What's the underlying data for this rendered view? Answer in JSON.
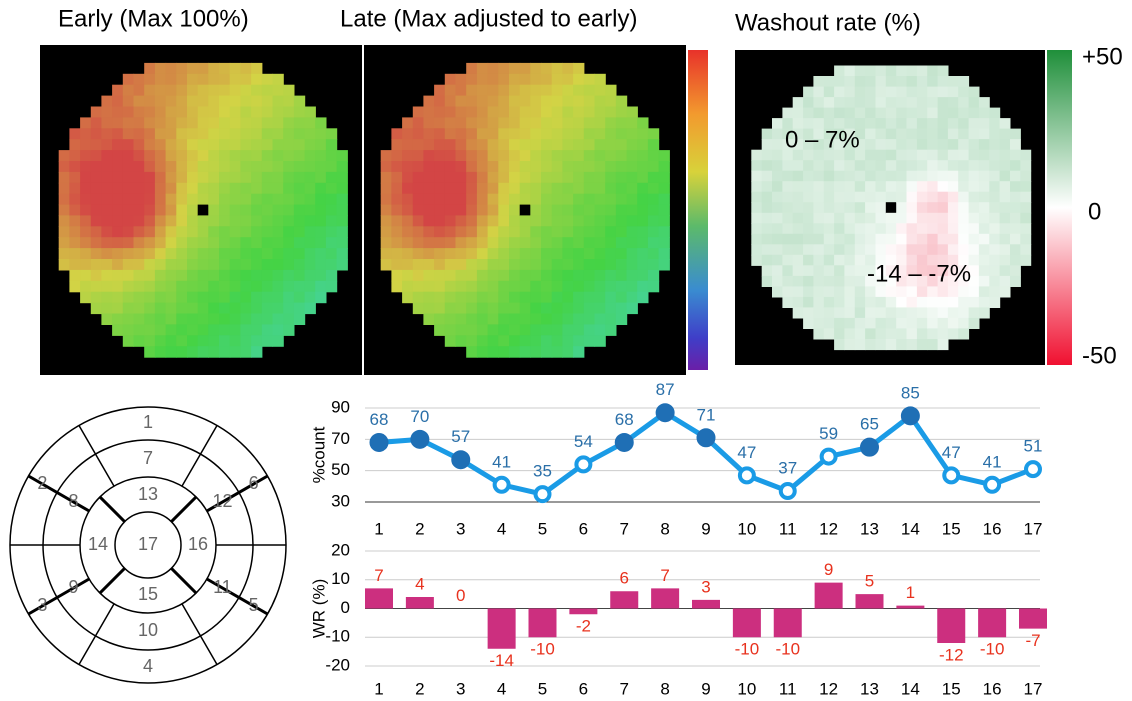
{
  "figure": {
    "maps": [
      {
        "title": "Early (Max 100%)"
      },
      {
        "title": "Late (Max adjusted to early)"
      },
      {
        "title": "Washout rate (%)",
        "scale_labels": [
          "+50",
          "0",
          "-50"
        ],
        "annotations": [
          "0 – 7%",
          "-14 – -7%"
        ]
      }
    ],
    "bullseye": {
      "segments": [
        "1",
        "2",
        "3",
        "4",
        "5",
        "6",
        "7",
        "8",
        "9",
        "10",
        "11",
        "12",
        "13",
        "14",
        "15",
        "16",
        "17"
      ]
    }
  },
  "chart_data": [
    {
      "type": "line",
      "y_label": "%count",
      "categories": [
        "1",
        "2",
        "3",
        "4",
        "5",
        "6",
        "7",
        "8",
        "9",
        "10",
        "11",
        "12",
        "13",
        "14",
        "15",
        "16",
        "17"
      ],
      "values": [
        68,
        70,
        57,
        41,
        35,
        54,
        68,
        87,
        71,
        47,
        37,
        59,
        65,
        85,
        47,
        41,
        51
      ],
      "marker_filled": [
        true,
        true,
        true,
        false,
        false,
        false,
        true,
        true,
        true,
        false,
        false,
        false,
        true,
        true,
        false,
        false,
        false
      ],
      "ylim": [
        30,
        90
      ],
      "yticks": [
        30,
        50,
        70,
        90
      ],
      "color": "#1a9be6",
      "grid": true
    },
    {
      "type": "bar",
      "y_label": "WR (%)",
      "categories": [
        "1",
        "2",
        "3",
        "4",
        "5",
        "6",
        "7",
        "8",
        "9",
        "10",
        "11",
        "12",
        "13",
        "14",
        "15",
        "16",
        "17"
      ],
      "values": [
        7,
        4,
        0,
        -14,
        -10,
        -2,
        6,
        7,
        3,
        -10,
        -10,
        9,
        5,
        1,
        -12,
        -10,
        -7
      ],
      "ylim": [
        -20,
        20
      ],
      "yticks": [
        -20,
        -10,
        0,
        10,
        20
      ],
      "color": "#cc2f7f",
      "label_color": "#e8321e",
      "grid": true
    }
  ]
}
